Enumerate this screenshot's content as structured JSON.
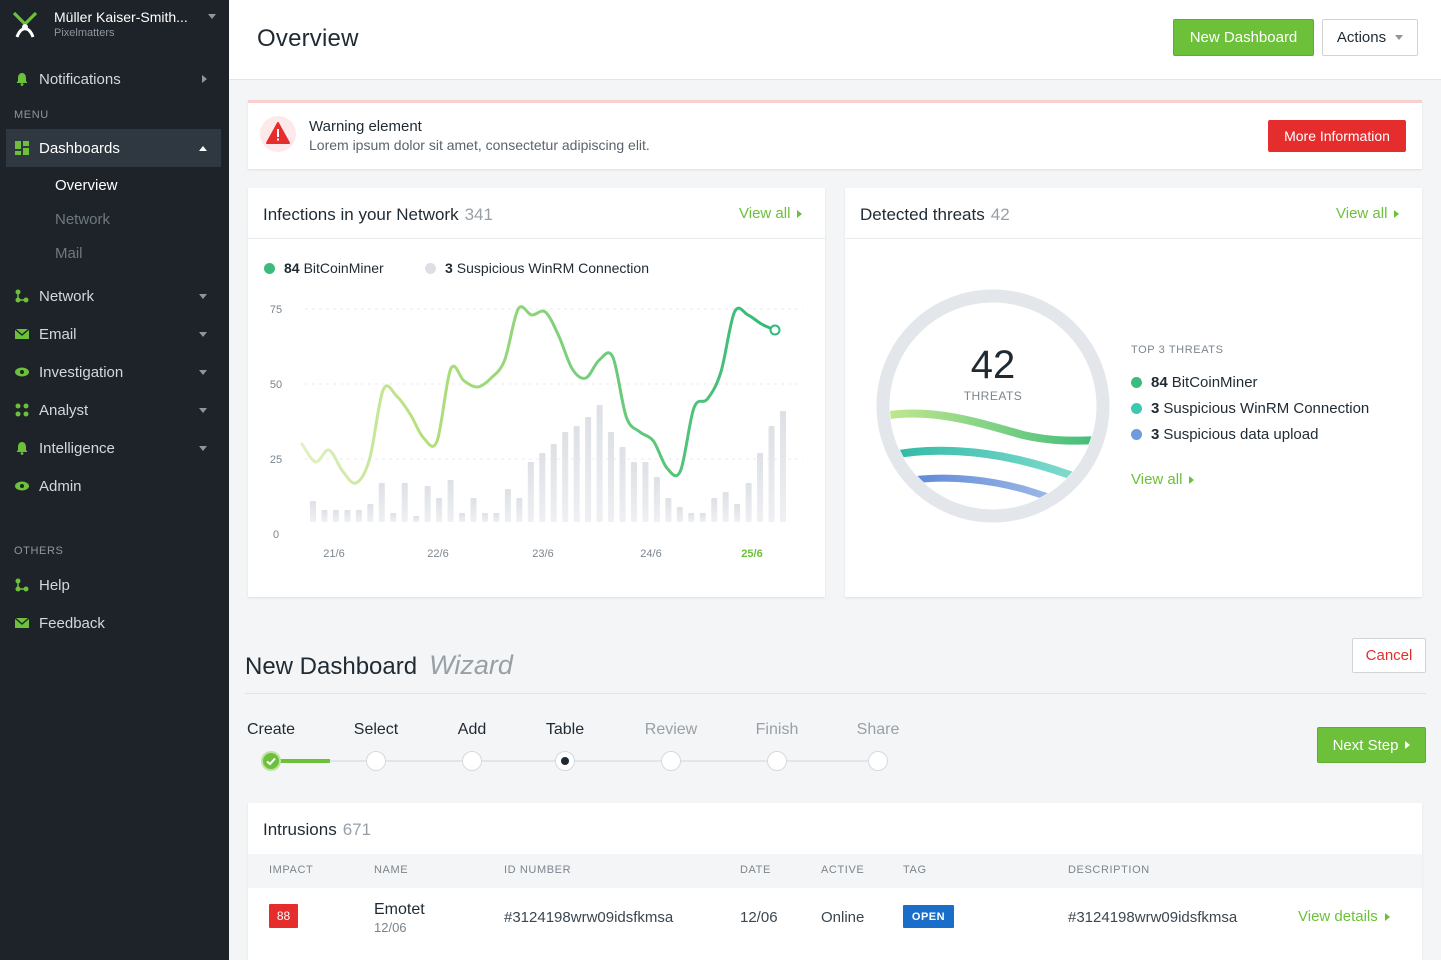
{
  "sidebar": {
    "org_name": "Müller Kaiser-Smith...",
    "org_sub": "Pixelmatters",
    "notifications": "Notifications",
    "section_menu": "MENU",
    "section_others": "OTHERS",
    "items": [
      {
        "label": "Dashboards",
        "icon": "grid-icon"
      },
      {
        "label": "Network",
        "icon": "network-icon"
      },
      {
        "label": "Email",
        "icon": "mail-icon"
      },
      {
        "label": "Investigation",
        "icon": "eye-icon"
      },
      {
        "label": "Analyst",
        "icon": "analyst-icon"
      },
      {
        "label": "Intelligence",
        "icon": "bell-icon"
      },
      {
        "label": "Admin",
        "icon": "eye-icon"
      }
    ],
    "subitems": [
      "Overview",
      "Network",
      "Mail"
    ],
    "others": [
      {
        "label": "Help",
        "icon": "help-icon"
      },
      {
        "label": "Feedback",
        "icon": "mail-icon"
      }
    ]
  },
  "header": {
    "title": "Overview",
    "new_dashboard": "New Dashboard",
    "actions": "Actions"
  },
  "warning": {
    "title": "Warning element",
    "text": "Lorem ipsum dolor sit amet, consectetur adipiscing elit.",
    "button": "More Information"
  },
  "infections": {
    "title": "Infections in your Network",
    "count": "341",
    "view_all": "View all",
    "legend": [
      {
        "count": "84",
        "label": "BitCoinMiner",
        "color": "#3dbb7c"
      },
      {
        "count": "3",
        "label": "Suspicious WinRM Connection",
        "color": "#dcdfe3"
      }
    ]
  },
  "chart_data": {
    "type": "line",
    "y_ticks": [
      "75",
      "50",
      "25",
      "0"
    ],
    "ylim": [
      0,
      75
    ],
    "x_ticks": [
      "21/6",
      "22/6",
      "23/6",
      "24/6",
      "25/6"
    ],
    "highlight_x_tick": "25/6",
    "line_color_start": "#e3f0c6",
    "line_color_end": "#2fba79",
    "bar_color": "#e3e6ea",
    "series": [
      {
        "values": [
          30,
          24,
          28,
          21,
          17,
          25,
          48,
          46,
          40,
          32,
          31,
          55,
          51,
          49,
          52,
          58,
          75,
          73,
          74,
          66,
          55,
          52,
          58,
          59,
          39,
          34,
          31,
          22,
          21,
          42,
          45,
          54,
          74,
          73,
          70,
          68
        ]
      },
      {
        "values": [
          7,
          4,
          4,
          4,
          4,
          6,
          13,
          3,
          13,
          2,
          12,
          8,
          14,
          3,
          8,
          3,
          3,
          11,
          8,
          20,
          23,
          26,
          30,
          32,
          35,
          39,
          30,
          25,
          20,
          20,
          15,
          8,
          5,
          3,
          3,
          8,
          10,
          6,
          13,
          23,
          32,
          37
        ]
      }
    ]
  },
  "threats": {
    "title": "Detected threats",
    "count": "42",
    "view_all": "View all",
    "big_number": "42",
    "big_label": "THREATS",
    "top_label": "TOP 3 THREATS",
    "items": [
      {
        "count": "84",
        "label": "BitCoinMiner",
        "color": "#3dbb7c"
      },
      {
        "count": "3",
        "label": "Suspicious WinRM Connection",
        "color": "#3cc9b4"
      },
      {
        "count": "3",
        "label": "Suspicious data upload",
        "color": "#6e9bdc"
      }
    ],
    "view_all_inner": "View all"
  },
  "wizard": {
    "title": "New Dashboard",
    "subtitle": "Wizard",
    "cancel": "Cancel",
    "next": "Next Step",
    "steps": [
      {
        "label": "Create",
        "state": "done"
      },
      {
        "label": "Select",
        "state": "pending"
      },
      {
        "label": "Add",
        "state": "pending"
      },
      {
        "label": "Table",
        "state": "current"
      },
      {
        "label": "Review",
        "state": "upcoming"
      },
      {
        "label": "Finish",
        "state": "upcoming"
      },
      {
        "label": "Share",
        "state": "upcoming"
      }
    ]
  },
  "intrusions": {
    "title": "Intrusions",
    "count": "671",
    "columns": [
      "IMPACT",
      "NAME",
      "ID NUMBER",
      "DATE",
      "ACTIVE",
      "TAG",
      "DESCRIPTION"
    ],
    "rows": [
      {
        "impact": "88",
        "name": "Emotet",
        "name_sub": "12/06",
        "id": "#3124198wrw09idsfkmsa",
        "date": "12/06",
        "active": "Online",
        "tag": "OPEN",
        "description": "#3124198wrw09idsfkmsa",
        "action": "View details"
      }
    ]
  }
}
